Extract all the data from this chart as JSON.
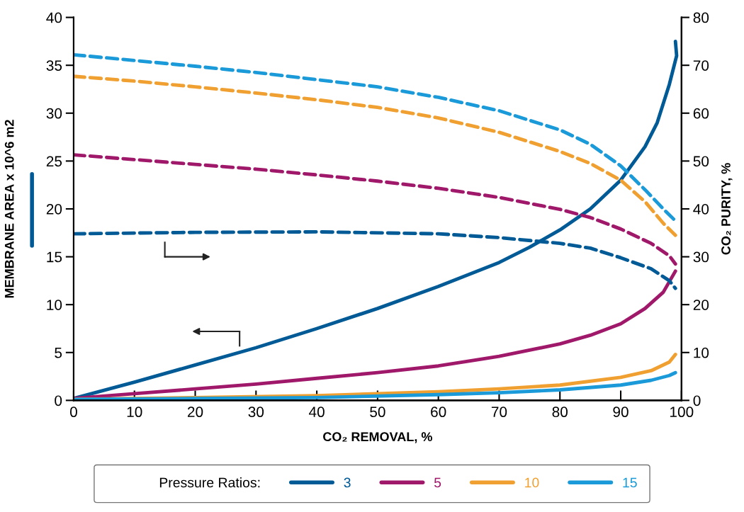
{
  "chart_data": {
    "type": "line",
    "xlabel": "CO₂ REMOVAL, %",
    "ylabel": "MEMBRANE AREA x 10^6 m2",
    "y2label": "CO₂ PURITY, %",
    "legend_title": "Pressure Ratios:",
    "legend": "bottom",
    "grid": false,
    "marker": "none",
    "xlim": [
      0,
      100
    ],
    "xticks": [
      0,
      10,
      20,
      30,
      40,
      50,
      60,
      70,
      80,
      90,
      100
    ],
    "ylim": [
      0,
      40
    ],
    "yticks": [
      0,
      5,
      10,
      15,
      20,
      25,
      30,
      35,
      40
    ],
    "y2lim": [
      0,
      80
    ],
    "y2ticks": [
      0,
      10,
      20,
      30,
      40,
      50,
      60,
      70,
      80
    ],
    "series": [
      {
        "name": "3",
        "color": "#005a96",
        "line_style": "solid",
        "x": [
          0,
          10,
          20,
          30,
          40,
          50,
          60,
          70,
          75,
          80,
          85,
          90,
          94,
          96,
          98,
          99.2,
          99.0
        ],
        "values": [
          0.2,
          1.9,
          3.7,
          5.5,
          7.5,
          9.6,
          11.9,
          14.4,
          16,
          17.8,
          20,
          23,
          26.5,
          29,
          33,
          36,
          37.5
        ]
      },
      {
        "name": "5",
        "color": "#a0186a",
        "line_style": "solid",
        "x": [
          0,
          10,
          20,
          30,
          40,
          50,
          60,
          70,
          80,
          85,
          90,
          94,
          97,
          99
        ],
        "values": [
          0.2,
          0.7,
          1.2,
          1.7,
          2.3,
          2.9,
          3.6,
          4.6,
          5.9,
          6.8,
          8.0,
          9.6,
          11.3,
          13.5
        ]
      },
      {
        "name": "10",
        "color": "#f0a030",
        "line_style": "solid",
        "x": [
          0,
          20,
          40,
          60,
          70,
          80,
          90,
          95,
          98,
          99
        ],
        "values": [
          0.1,
          0.3,
          0.5,
          0.9,
          1.2,
          1.6,
          2.4,
          3.1,
          4.0,
          4.8
        ]
      },
      {
        "name": "15",
        "color": "#1a9ad8",
        "line_style": "solid",
        "x": [
          0,
          20,
          40,
          60,
          70,
          80,
          90,
          95,
          98,
          99
        ],
        "values": [
          0.1,
          0.2,
          0.3,
          0.6,
          0.8,
          1.1,
          1.6,
          2.1,
          2.6,
          2.9
        ]
      },
      {
        "color": "#005a96",
        "line_style": "dashed",
        "axis": "y2",
        "x": [
          0,
          20,
          40,
          60,
          70,
          80,
          85,
          90,
          95,
          98,
          99
        ],
        "values": [
          34.8,
          35.1,
          35.2,
          34.8,
          34,
          32.8,
          31.8,
          29.8,
          27.5,
          25,
          23.4
        ]
      },
      {
        "color": "#a0186a",
        "line_style": "dashed",
        "axis": "y2",
        "x": [
          0,
          10,
          20,
          30,
          40,
          50,
          60,
          70,
          80,
          85,
          90,
          95,
          98,
          99
        ],
        "values": [
          51.3,
          50.3,
          49.3,
          48.3,
          47.1,
          45.8,
          44.3,
          42.4,
          39.9,
          38.2,
          35.8,
          32.8,
          30.2,
          28.5
        ]
      },
      {
        "color": "#f0a030",
        "line_style": "dashed",
        "axis": "y2",
        "x": [
          0,
          10,
          20,
          30,
          40,
          50,
          60,
          70,
          80,
          85,
          90,
          94,
          97,
          99
        ],
        "values": [
          67.7,
          66.7,
          65.5,
          64.2,
          62.8,
          61.2,
          59,
          56,
          52,
          49.5,
          46,
          41.5,
          37,
          34.5
        ]
      },
      {
        "color": "#1a9ad8",
        "line_style": "dashed",
        "axis": "y2",
        "x": [
          0,
          10,
          20,
          30,
          40,
          50,
          60,
          70,
          80,
          85,
          90,
          94,
          97,
          99
        ],
        "values": [
          72.2,
          71,
          69.8,
          68.5,
          67,
          65.5,
          63.3,
          60.5,
          56.5,
          53.5,
          49,
          44,
          40,
          37.5
        ]
      }
    ]
  }
}
